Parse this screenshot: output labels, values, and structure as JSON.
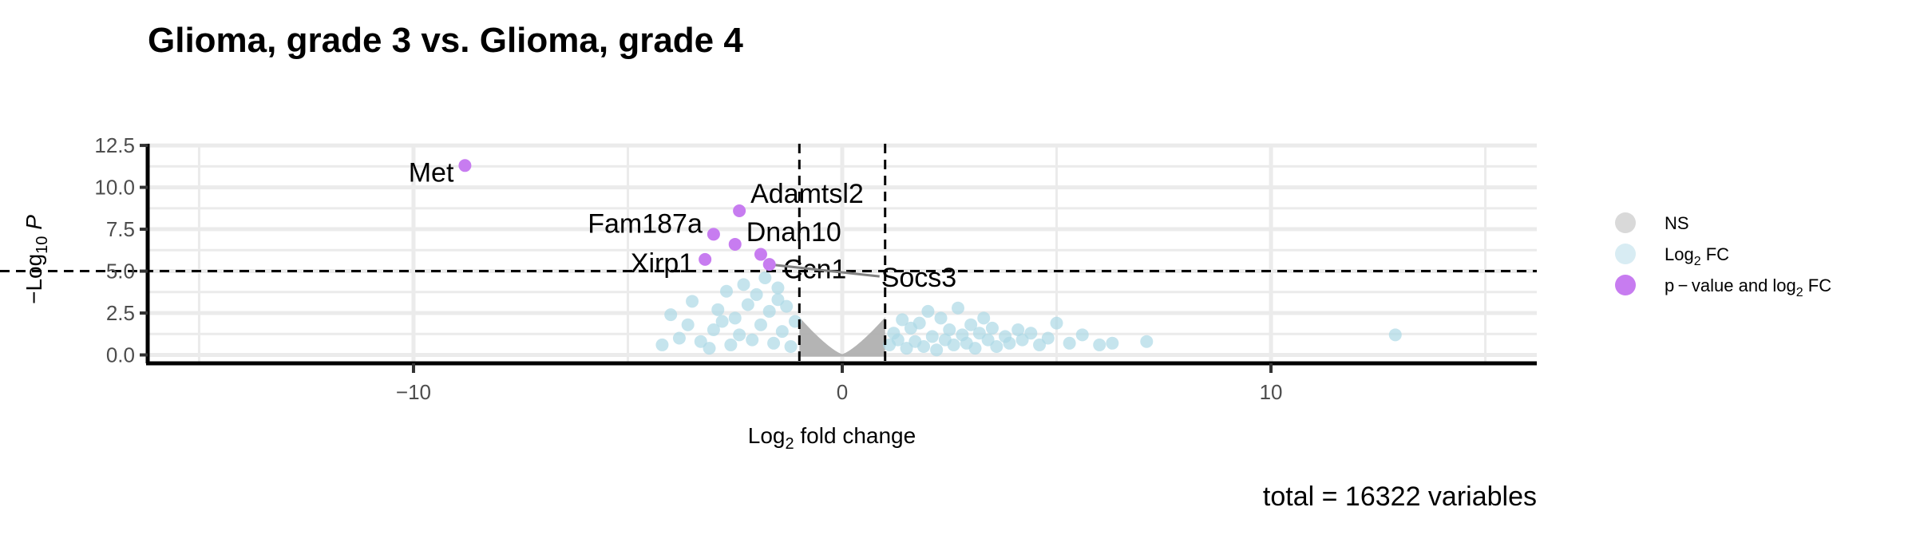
{
  "chart_data": {
    "type": "scatter",
    "title": "Glioma, grade 3 vs. Glioma, grade 4",
    "xlabel_main": "Log",
    "xlabel_sub": "2",
    "xlabel_tail": " fold change",
    "ylabel_prefix": "−Log",
    "ylabel_sub": "10",
    "ylabel_var": "P",
    "xlim": [
      -16.2,
      16.2
    ],
    "ylim": [
      -0.5,
      12.6
    ],
    "x_ticks": [
      -10,
      0,
      10
    ],
    "x_tick_labels": [
      "−10",
      "0",
      "10"
    ],
    "y_ticks": [
      0,
      2.5,
      5,
      7.5,
      10,
      12.5
    ],
    "y_tick_labels": [
      "0.0",
      "2.5",
      "5.0",
      "7.5",
      "10.0",
      "12.5"
    ],
    "vlines": [
      -1,
      1
    ],
    "hline": 5,
    "caption": "total = 16322 variables",
    "colors": {
      "NS": "#b0b0b0",
      "FC": "#add8e6",
      "P_FC": "#c77cf0",
      "grid": "#ebebeb",
      "axis": "#000000"
    },
    "legend": {
      "placement": "right",
      "items": [
        {
          "key": "NS",
          "label": "NS"
        },
        {
          "key": "FC",
          "label_main": "Log",
          "label_sub": "2",
          "label_tail": " FC"
        },
        {
          "key": "P_FC",
          "label_main": "p − value and log",
          "label_sub": "2",
          "label_tail": " FC"
        }
      ]
    },
    "significant": [
      {
        "gene": "Met",
        "x": -8.8,
        "y": 11.3
      },
      {
        "gene": "Adamtsl2",
        "x": -2.4,
        "y": 8.6
      },
      {
        "gene": "Fam187a",
        "x": -3.0,
        "y": 7.2
      },
      {
        "gene": "Dnah10",
        "x": -2.5,
        "y": 6.6
      },
      {
        "gene": "Xirp1",
        "x": -3.2,
        "y": 5.7
      },
      {
        "gene": "Ccn1",
        "x": -1.9,
        "y": 6.0
      },
      {
        "gene": "Socs3",
        "x": -1.7,
        "y": 5.4
      }
    ],
    "fc_points": [
      [
        -3.8,
        1.0
      ],
      [
        -3.5,
        3.2
      ],
      [
        -3.3,
        0.8
      ],
      [
        -3.0,
        1.5
      ],
      [
        -2.9,
        2.7
      ],
      [
        -2.7,
        3.8
      ],
      [
        -2.6,
        0.6
      ],
      [
        -2.5,
        2.2
      ],
      [
        -2.4,
        1.2
      ],
      [
        -2.3,
        4.2
      ],
      [
        -2.2,
        3.0
      ],
      [
        -2.1,
        0.9
      ],
      [
        -2.0,
        3.6
      ],
      [
        -1.9,
        1.8
      ],
      [
        -1.8,
        4.6
      ],
      [
        -1.7,
        2.6
      ],
      [
        -1.6,
        0.7
      ],
      [
        -1.5,
        3.3
      ],
      [
        -1.4,
        1.4
      ],
      [
        -1.3,
        2.9
      ],
      [
        -1.2,
        0.5
      ],
      [
        -1.1,
        2.0
      ],
      [
        -1.5,
        4.0
      ],
      [
        -2.8,
        2.0
      ],
      [
        -3.1,
        0.4
      ],
      [
        -4.0,
        2.4
      ],
      [
        -4.2,
        0.6
      ],
      [
        -3.6,
        1.8
      ],
      [
        1.1,
        0.6
      ],
      [
        1.2,
        1.3
      ],
      [
        1.3,
        0.9
      ],
      [
        1.4,
        2.1
      ],
      [
        1.5,
        0.4
      ],
      [
        1.6,
        1.6
      ],
      [
        1.7,
        0.8
      ],
      [
        1.8,
        1.9
      ],
      [
        1.9,
        0.5
      ],
      [
        2.0,
        2.6
      ],
      [
        2.1,
        1.1
      ],
      [
        2.2,
        0.3
      ],
      [
        2.3,
        2.2
      ],
      [
        2.4,
        0.9
      ],
      [
        2.5,
        1.5
      ],
      [
        2.6,
        0.6
      ],
      [
        2.7,
        2.8
      ],
      [
        2.8,
        1.2
      ],
      [
        2.9,
        0.7
      ],
      [
        3.0,
        1.8
      ],
      [
        3.1,
        0.4
      ],
      [
        3.2,
        1.3
      ],
      [
        3.3,
        2.2
      ],
      [
        3.4,
        0.9
      ],
      [
        3.5,
        1.6
      ],
      [
        3.6,
        0.5
      ],
      [
        3.8,
        1.1
      ],
      [
        3.9,
        0.7
      ],
      [
        4.1,
        1.5
      ],
      [
        4.2,
        0.9
      ],
      [
        4.4,
        1.3
      ],
      [
        4.6,
        0.6
      ],
      [
        4.8,
        1.0
      ],
      [
        5.0,
        1.9
      ],
      [
        5.3,
        0.7
      ],
      [
        5.6,
        1.2
      ],
      [
        6.0,
        0.6
      ],
      [
        6.3,
        0.7
      ],
      [
        7.1,
        0.8
      ],
      [
        12.9,
        1.2
      ]
    ]
  }
}
